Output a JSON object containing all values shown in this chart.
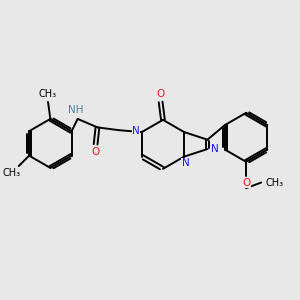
{
  "background_color": "#e8e8e8",
  "bond_color": "#000000",
  "N_color": "#1a1aee",
  "O_color": "#ee1a1a",
  "NH_color": "#4a8899",
  "figsize": [
    3.0,
    3.0
  ],
  "dpi": 100,
  "xlim": [
    -2.8,
    3.2
  ],
  "ylim": [
    -2.2,
    2.2
  ]
}
